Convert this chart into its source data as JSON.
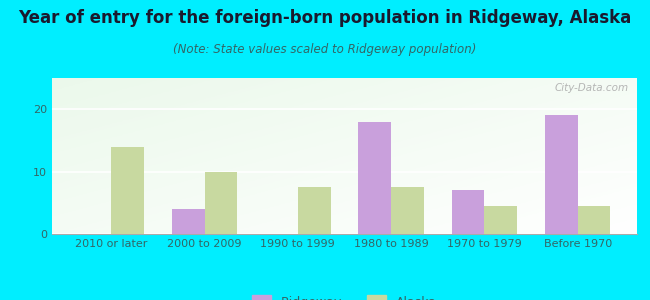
{
  "title": "Year of entry for the foreign-born population in Ridgeway, Alaska",
  "subtitle": "(Note: State values scaled to Ridgeway population)",
  "categories": [
    "2010 or later",
    "2000 to 2009",
    "1990 to 1999",
    "1980 to 1989",
    "1970 to 1979",
    "Before 1970"
  ],
  "ridgeway_values": [
    0,
    4,
    0,
    18,
    7,
    19
  ],
  "alaska_values": [
    14,
    10,
    7.5,
    7.5,
    4.5,
    4.5
  ],
  "ridgeway_color": "#c9a0dc",
  "alaska_color": "#c8d9a0",
  "background_outer": "#00eeff",
  "ylim": [
    0,
    25
  ],
  "yticks": [
    0,
    10,
    20
  ],
  "bar_width": 0.35,
  "title_fontsize": 12,
  "subtitle_fontsize": 8.5,
  "tick_fontsize": 8,
  "legend_labels": [
    "Ridgeway",
    "Alaska"
  ],
  "watermark": "City-Data.com",
  "title_color": "#1a1a2e",
  "subtitle_color": "#336666",
  "tick_color": "#336666"
}
